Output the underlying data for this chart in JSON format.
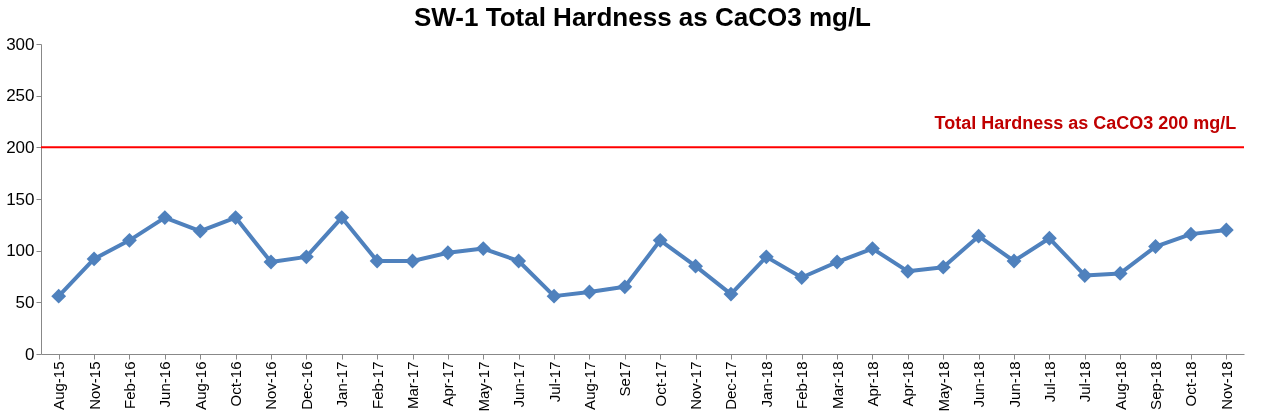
{
  "chart_data": {
    "type": "line",
    "title": "SW-1 Total Hardness as CaCO3 mg/L",
    "categories": [
      "Aug-15",
      "Nov-15",
      "Feb-16",
      "Jun-16",
      "Aug-16",
      "Oct-16",
      "Nov-16",
      "Dec-16",
      "Jan-17",
      "Feb-17",
      "Mar-17",
      "Apr-17",
      "May-17",
      "Jun-17",
      "Jul-17",
      "Aug-17",
      "Se17",
      "Oct-17",
      "Nov-17",
      "Dec-17",
      "Jan-18",
      "Feb-18",
      "Mar-18",
      "Apr-18",
      "Apr-18",
      "May-18",
      "Jun-18",
      "Jun-18",
      "Jul-18",
      "Jul-18",
      "Aug-18",
      "Sep-18",
      "Oct-18",
      "Nov-18"
    ],
    "series": [
      {
        "color": "#4f81bd",
        "values": [
          56,
          92,
          110,
          132,
          119,
          132,
          89,
          94,
          132,
          90,
          90,
          98,
          102,
          90,
          56,
          60,
          65,
          110,
          85,
          58,
          94,
          74,
          89,
          102,
          80,
          84,
          114,
          90,
          112,
          76,
          78,
          104,
          116,
          120
        ]
      }
    ],
    "ylim": [
      0,
      300
    ],
    "yticks": [
      0,
      50,
      100,
      150,
      200,
      250,
      300
    ],
    "ref_lines": [
      {
        "axis": "y",
        "value": 200,
        "label": "Total Hardness as CaCO3 200 mg/L",
        "color": "#ff0000"
      }
    ],
    "marker": "diamond",
    "line_style": "solid",
    "grid": false
  }
}
